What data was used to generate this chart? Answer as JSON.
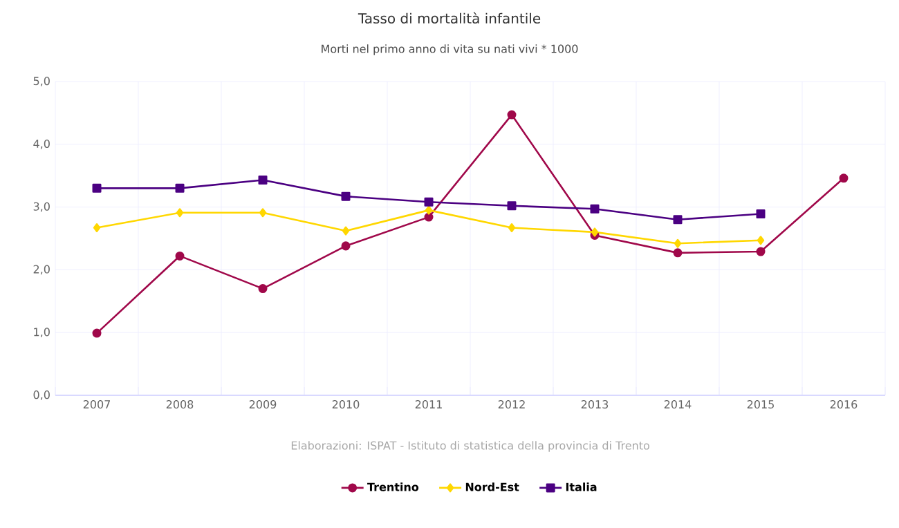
{
  "chart_data": {
    "type": "line",
    "title": "Tasso di mortalità infantile",
    "subtitle": "Morti nel primo anno di vita su nati vivi * 1000",
    "categories": [
      "2007",
      "2008",
      "2009",
      "2010",
      "2011",
      "2012",
      "2013",
      "2014",
      "2015",
      "2016"
    ],
    "series": [
      {
        "name": "Trentino",
        "color": "#a0084a",
        "marker": "circle",
        "values": [
          0.99,
          2.22,
          1.7,
          2.38,
          2.84,
          4.47,
          2.55,
          2.27,
          2.29,
          3.46
        ]
      },
      {
        "name": "Nord-Est",
        "color": "#ffd700",
        "marker": "diamond",
        "values": [
          2.67,
          2.91,
          2.91,
          2.62,
          2.95,
          2.67,
          2.6,
          2.42,
          2.47,
          null
        ]
      },
      {
        "name": "Italia",
        "color": "#4b0082",
        "marker": "square",
        "values": [
          3.3,
          3.3,
          3.43,
          3.17,
          3.08,
          3.02,
          2.97,
          2.8,
          2.89,
          null
        ]
      }
    ],
    "ylim": [
      0,
      5
    ],
    "yticks": [
      {
        "value": 0,
        "label": "0,0"
      },
      {
        "value": 1,
        "label": "1,0"
      },
      {
        "value": 2,
        "label": "2,0"
      },
      {
        "value": 3,
        "label": "3,0"
      },
      {
        "value": 4,
        "label": "4,0"
      },
      {
        "value": 5,
        "label": "5,0"
      }
    ],
    "grid": true,
    "legend": "bottom",
    "annotations": [
      "Elaborazioni: ISPAT - Istituto di statistica della provincia di Trento"
    ]
  }
}
